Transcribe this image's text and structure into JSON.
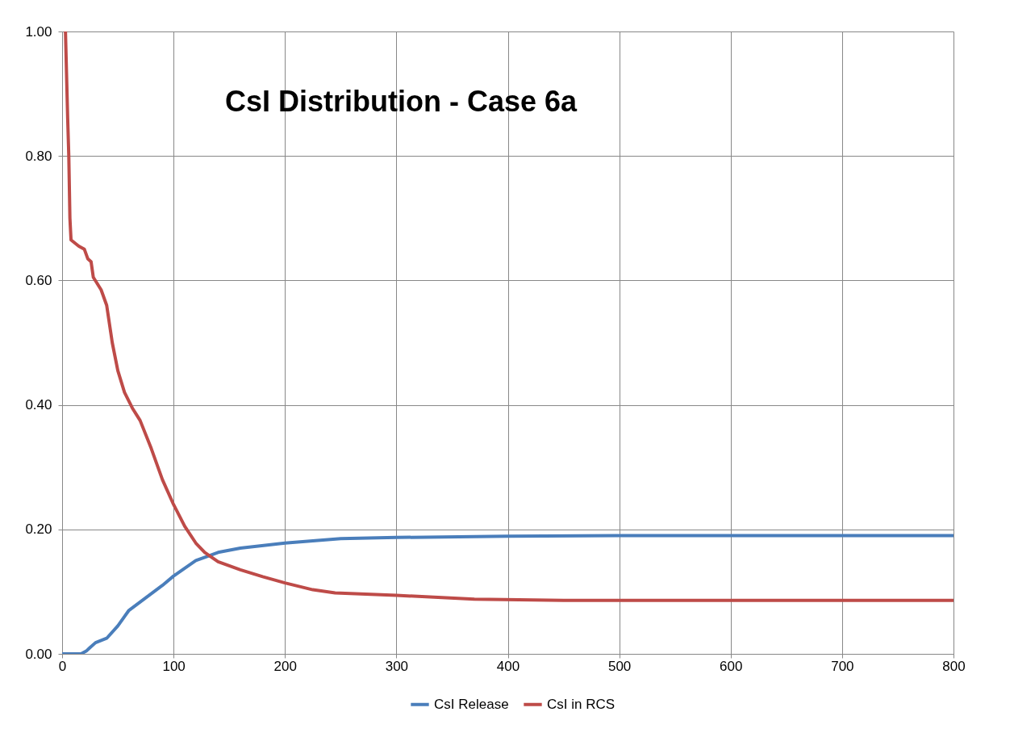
{
  "chart_data": {
    "type": "line",
    "title": "CsI Distribution - Case 6a",
    "xlim": [
      0,
      800
    ],
    "xticks": [
      0,
      100,
      200,
      300,
      400,
      500,
      600,
      700,
      800
    ],
    "ylim": [
      0,
      1
    ],
    "yticks": [
      {
        "value": 0,
        "label": "0.00"
      },
      {
        "value": 0.2,
        "label": "0.20"
      },
      {
        "value": 0.4,
        "label": "0.40"
      },
      {
        "value": 0.6,
        "label": "0.60"
      },
      {
        "value": 0.8,
        "label": "0.80"
      },
      {
        "value": 1,
        "label": "1.00"
      }
    ],
    "grid": true,
    "legend": "bottom",
    "marker": "none",
    "line_style": "solid",
    "series": [
      {
        "name": "CsI Release",
        "color": "#4a7ebb",
        "x": [
          0,
          10,
          17,
          22,
          25,
          30,
          40,
          50,
          60,
          75,
          90,
          100,
          120,
          140,
          160,
          200,
          250,
          300,
          400,
          500,
          800
        ],
        "values": [
          0,
          0,
          0,
          0.005,
          0.01,
          0.018,
          0.025,
          0.045,
          0.07,
          0.09,
          0.11,
          0.125,
          0.15,
          0.163,
          0.17,
          0.178,
          0.185,
          0.187,
          0.189,
          0.19,
          0.19
        ]
      },
      {
        "name": "CsI in RCS",
        "color": "#be4b48",
        "x": [
          3,
          5,
          6,
          7,
          8,
          15,
          20,
          23,
          26,
          28,
          35,
          40,
          45,
          50,
          56,
          63,
          70,
          80,
          90,
          100,
          110,
          120,
          128,
          140,
          160,
          180,
          200,
          225,
          245,
          300,
          370,
          450,
          800
        ],
        "values": [
          1.0,
          0.86,
          0.8,
          0.7,
          0.665,
          0.655,
          0.65,
          0.635,
          0.63,
          0.605,
          0.585,
          0.56,
          0.5,
          0.455,
          0.42,
          0.395,
          0.375,
          0.33,
          0.28,
          0.24,
          0.205,
          0.178,
          0.163,
          0.148,
          0.135,
          0.124,
          0.114,
          0.103,
          0.098,
          0.094,
          0.088,
          0.086,
          0.086
        ]
      }
    ]
  }
}
